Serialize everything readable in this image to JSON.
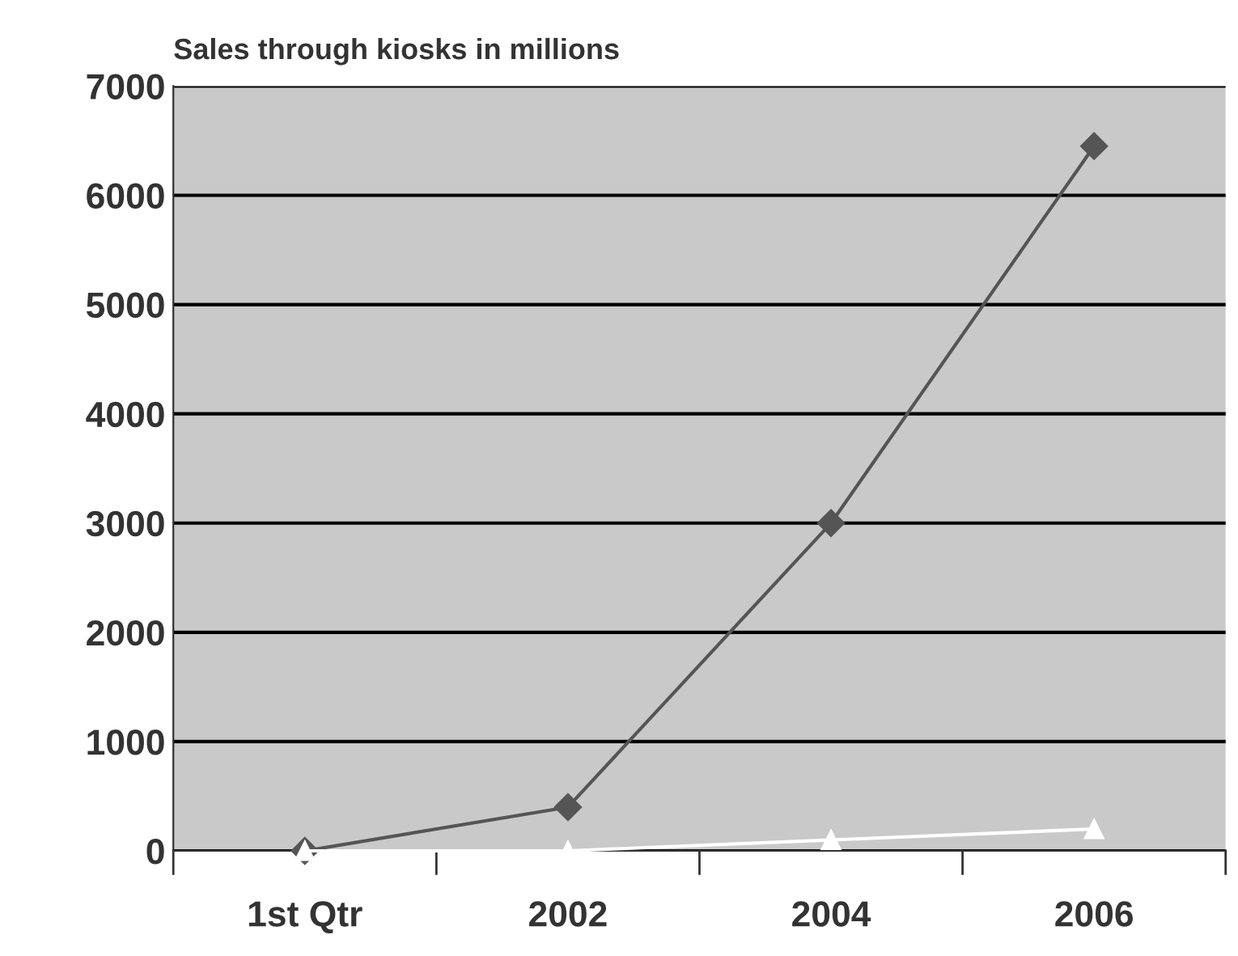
{
  "chart_data": {
    "type": "line",
    "title": "Sales through kiosks in millions",
    "categories": [
      "1st Qtr",
      "2002",
      "2004",
      "2006"
    ],
    "series": [
      {
        "color": "#555555",
        "marker": "diamond",
        "values": [
          0,
          400,
          3000,
          6450
        ]
      },
      {
        "color": "#ffffff",
        "marker": "triangle",
        "values": [
          0,
          0,
          100,
          200
        ]
      }
    ],
    "ylim": [
      0,
      7000
    ],
    "yticks": [
      0,
      1000,
      2000,
      3000,
      4000,
      5000,
      6000,
      7000
    ],
    "grid": "y",
    "legend": false
  }
}
